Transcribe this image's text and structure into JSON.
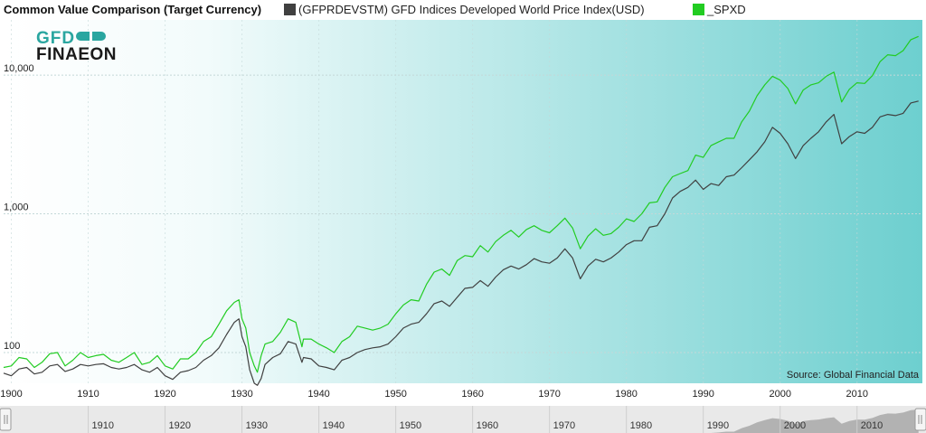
{
  "chart_data": {
    "type": "line",
    "title": "Common Value Comparison (Target Currency)",
    "scale": "log",
    "ylim": [
      60,
      25000
    ],
    "xlim": [
      1899,
      2018.5
    ],
    "y_ticks": [
      {
        "value": 100,
        "label": "100"
      },
      {
        "value": 1000,
        "label": "1,000"
      },
      {
        "value": 10000,
        "label": "10,000"
      }
    ],
    "x_ticks": [
      1900,
      1910,
      1920,
      1930,
      1940,
      1950,
      1960,
      1970,
      1980,
      1990,
      2000,
      2010
    ],
    "x_tick_labels": [
      "1900",
      "1910",
      "1920",
      "1930",
      "1940",
      "1950",
      "1960",
      "1970",
      "1980",
      "1990",
      "2000",
      "2010"
    ],
    "navigator_ticks": [
      1910,
      1920,
      1930,
      1940,
      1950,
      1960,
      1970,
      1980,
      1990,
      2000,
      2010
    ],
    "navigator_tick_labels": [
      "1910",
      "1920",
      "1930",
      "1940",
      "1950",
      "1960",
      "1970",
      "1980",
      "1990",
      "2000",
      "2010"
    ],
    "source": "Source: Global Financial Data",
    "series": [
      {
        "name": "(GFPRDEVSTM) GFD Indices Developed World Price Index(USD)",
        "color": "#404040",
        "points": [
          [
            1899,
            71
          ],
          [
            1900,
            68
          ],
          [
            1901,
            76
          ],
          [
            1902,
            78
          ],
          [
            1903,
            70
          ],
          [
            1904,
            72
          ],
          [
            1905,
            80
          ],
          [
            1906,
            82
          ],
          [
            1907,
            73
          ],
          [
            1908,
            76
          ],
          [
            1909,
            82
          ],
          [
            1910,
            80
          ],
          [
            1911,
            82
          ],
          [
            1912,
            83
          ],
          [
            1913,
            78
          ],
          [
            1914,
            76
          ],
          [
            1915,
            78
          ],
          [
            1916,
            82
          ],
          [
            1917,
            75
          ],
          [
            1918,
            72
          ],
          [
            1919,
            78
          ],
          [
            1920,
            68
          ],
          [
            1921,
            64
          ],
          [
            1922,
            72
          ],
          [
            1923,
            74
          ],
          [
            1924,
            78
          ],
          [
            1925,
            88
          ],
          [
            1926,
            95
          ],
          [
            1927,
            108
          ],
          [
            1928,
            135
          ],
          [
            1929,
            165
          ],
          [
            1929.6,
            175
          ],
          [
            1930,
            130
          ],
          [
            1930.5,
            110
          ],
          [
            1931,
            75
          ],
          [
            1931.6,
            60
          ],
          [
            1932,
            58
          ],
          [
            1932.5,
            65
          ],
          [
            1933,
            82
          ],
          [
            1934,
            92
          ],
          [
            1935,
            98
          ],
          [
            1936,
            120
          ],
          [
            1937,
            115
          ],
          [
            1937.8,
            85
          ],
          [
            1938,
            92
          ],
          [
            1939,
            90
          ],
          [
            1940,
            80
          ],
          [
            1941,
            78
          ],
          [
            1942,
            75
          ],
          [
            1943,
            88
          ],
          [
            1944,
            92
          ],
          [
            1945,
            100
          ],
          [
            1946,
            105
          ],
          [
            1947,
            108
          ],
          [
            1948,
            110
          ],
          [
            1949,
            115
          ],
          [
            1950,
            130
          ],
          [
            1951,
            150
          ],
          [
            1952,
            160
          ],
          [
            1953,
            165
          ],
          [
            1954,
            190
          ],
          [
            1955,
            225
          ],
          [
            1956,
            235
          ],
          [
            1957,
            215
          ],
          [
            1958,
            250
          ],
          [
            1959,
            290
          ],
          [
            1960,
            295
          ],
          [
            1961,
            330
          ],
          [
            1962,
            300
          ],
          [
            1963,
            350
          ],
          [
            1964,
            395
          ],
          [
            1965,
            420
          ],
          [
            1966,
            400
          ],
          [
            1967,
            430
          ],
          [
            1968,
            475
          ],
          [
            1969,
            450
          ],
          [
            1970,
            440
          ],
          [
            1971,
            480
          ],
          [
            1972,
            560
          ],
          [
            1973,
            480
          ],
          [
            1974,
            340
          ],
          [
            1975,
            420
          ],
          [
            1976,
            470
          ],
          [
            1977,
            450
          ],
          [
            1978,
            480
          ],
          [
            1979,
            530
          ],
          [
            1980,
            600
          ],
          [
            1981,
            640
          ],
          [
            1982,
            640
          ],
          [
            1983,
            800
          ],
          [
            1984,
            820
          ],
          [
            1985,
            1000
          ],
          [
            1986,
            1300
          ],
          [
            1987,
            1450
          ],
          [
            1988,
            1550
          ],
          [
            1989,
            1750
          ],
          [
            1990,
            1500
          ],
          [
            1991,
            1650
          ],
          [
            1992,
            1600
          ],
          [
            1993,
            1850
          ],
          [
            1994,
            1900
          ],
          [
            1995,
            2150
          ],
          [
            1996,
            2450
          ],
          [
            1997,
            2800
          ],
          [
            1998,
            3300
          ],
          [
            1999,
            4200
          ],
          [
            2000,
            3800
          ],
          [
            2001,
            3200
          ],
          [
            2002,
            2500
          ],
          [
            2003,
            3100
          ],
          [
            2004,
            3500
          ],
          [
            2005,
            3900
          ],
          [
            2006,
            4600
          ],
          [
            2007,
            5200
          ],
          [
            2008,
            3200
          ],
          [
            2009,
            3600
          ],
          [
            2010,
            3900
          ],
          [
            2011,
            3800
          ],
          [
            2012,
            4200
          ],
          [
            2013,
            5000
          ],
          [
            2014,
            5200
          ],
          [
            2015,
            5100
          ],
          [
            2016,
            5300
          ],
          [
            2017,
            6300
          ],
          [
            2018,
            6500
          ]
        ]
      },
      {
        "name": "_SPXD",
        "color": "#22cc22",
        "points": [
          [
            1899,
            78
          ],
          [
            1900,
            80
          ],
          [
            1901,
            92
          ],
          [
            1902,
            90
          ],
          [
            1903,
            78
          ],
          [
            1904,
            85
          ],
          [
            1905,
            98
          ],
          [
            1906,
            100
          ],
          [
            1907,
            80
          ],
          [
            1908,
            88
          ],
          [
            1909,
            100
          ],
          [
            1910,
            92
          ],
          [
            1911,
            95
          ],
          [
            1912,
            97
          ],
          [
            1913,
            88
          ],
          [
            1914,
            85
          ],
          [
            1915,
            92
          ],
          [
            1916,
            100
          ],
          [
            1917,
            82
          ],
          [
            1918,
            85
          ],
          [
            1919,
            95
          ],
          [
            1920,
            80
          ],
          [
            1921,
            76
          ],
          [
            1922,
            90
          ],
          [
            1923,
            90
          ],
          [
            1924,
            100
          ],
          [
            1925,
            120
          ],
          [
            1926,
            130
          ],
          [
            1927,
            160
          ],
          [
            1928,
            200
          ],
          [
            1929,
            230
          ],
          [
            1929.6,
            240
          ],
          [
            1930,
            175
          ],
          [
            1930.5,
            150
          ],
          [
            1931,
            100
          ],
          [
            1931.6,
            80
          ],
          [
            1932,
            72
          ],
          [
            1932.5,
            95
          ],
          [
            1933,
            115
          ],
          [
            1934,
            120
          ],
          [
            1935,
            140
          ],
          [
            1936,
            175
          ],
          [
            1937,
            165
          ],
          [
            1937.8,
            110
          ],
          [
            1938,
            125
          ],
          [
            1939,
            125
          ],
          [
            1940,
            115
          ],
          [
            1941,
            108
          ],
          [
            1942,
            100
          ],
          [
            1943,
            120
          ],
          [
            1944,
            130
          ],
          [
            1945,
            155
          ],
          [
            1946,
            150
          ],
          [
            1947,
            145
          ],
          [
            1948,
            150
          ],
          [
            1949,
            160
          ],
          [
            1950,
            190
          ],
          [
            1951,
            220
          ],
          [
            1952,
            240
          ],
          [
            1953,
            235
          ],
          [
            1954,
            310
          ],
          [
            1955,
            380
          ],
          [
            1956,
            400
          ],
          [
            1957,
            360
          ],
          [
            1958,
            460
          ],
          [
            1959,
            500
          ],
          [
            1960,
            490
          ],
          [
            1961,
            590
          ],
          [
            1962,
            530
          ],
          [
            1963,
            630
          ],
          [
            1964,
            700
          ],
          [
            1965,
            760
          ],
          [
            1966,
            680
          ],
          [
            1967,
            770
          ],
          [
            1968,
            820
          ],
          [
            1969,
            760
          ],
          [
            1970,
            730
          ],
          [
            1971,
            820
          ],
          [
            1972,
            930
          ],
          [
            1973,
            790
          ],
          [
            1974,
            560
          ],
          [
            1975,
            690
          ],
          [
            1976,
            780
          ],
          [
            1977,
            700
          ],
          [
            1978,
            720
          ],
          [
            1979,
            800
          ],
          [
            1980,
            920
          ],
          [
            1981,
            880
          ],
          [
            1982,
            1000
          ],
          [
            1983,
            1200
          ],
          [
            1984,
            1220
          ],
          [
            1985,
            1550
          ],
          [
            1986,
            1850
          ],
          [
            1987,
            1950
          ],
          [
            1988,
            2050
          ],
          [
            1989,
            2650
          ],
          [
            1990,
            2550
          ],
          [
            1991,
            3100
          ],
          [
            1992,
            3300
          ],
          [
            1993,
            3500
          ],
          [
            1994,
            3500
          ],
          [
            1995,
            4600
          ],
          [
            1996,
            5500
          ],
          [
            1997,
            7100
          ],
          [
            1998,
            8500
          ],
          [
            1999,
            9800
          ],
          [
            2000,
            9200
          ],
          [
            2001,
            8000
          ],
          [
            2002,
            6200
          ],
          [
            2003,
            7800
          ],
          [
            2004,
            8500
          ],
          [
            2005,
            8800
          ],
          [
            2006,
            9800
          ],
          [
            2007,
            10500
          ],
          [
            2008,
            6400
          ],
          [
            2009,
            7900
          ],
          [
            2010,
            8800
          ],
          [
            2011,
            8700
          ],
          [
            2012,
            9900
          ],
          [
            2013,
            12500
          ],
          [
            2014,
            14000
          ],
          [
            2015,
            13800
          ],
          [
            2016,
            15000
          ],
          [
            2017,
            18000
          ],
          [
            2018,
            19000
          ]
        ]
      }
    ]
  },
  "logo": {
    "line1": "GFD",
    "line2": "FINAEON"
  },
  "colors": {
    "bg_start": "#ffffff",
    "bg_end": "#6dcfcf",
    "grid": "#c4d8d8",
    "navigator_bg": "#e9e9e9",
    "navigator_area": "#9a9a9a"
  }
}
